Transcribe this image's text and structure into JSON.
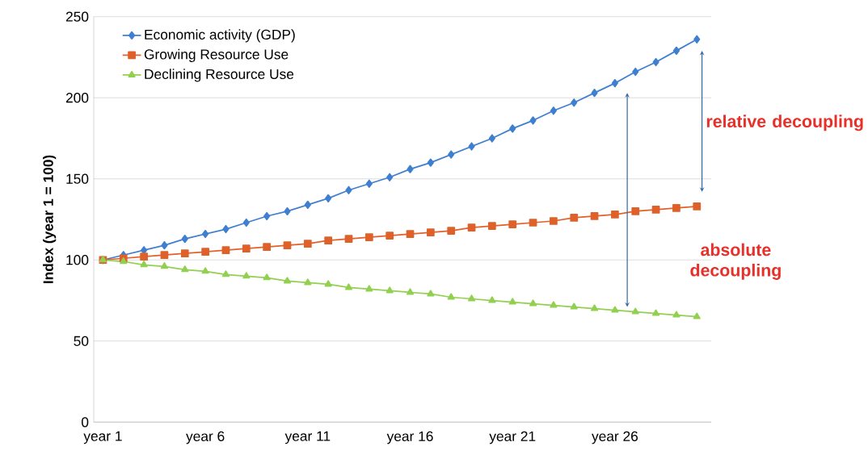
{
  "chart_data": {
    "type": "line",
    "ylabel": "Index (year 1 = 100)",
    "categories": [
      "year 1",
      null,
      null,
      null,
      null,
      "year 6",
      null,
      null,
      null,
      null,
      "year 11",
      null,
      null,
      null,
      null,
      "year 16",
      null,
      null,
      null,
      null,
      "year 21",
      null,
      null,
      null,
      null,
      "year 26",
      null,
      null,
      null,
      null
    ],
    "series": [
      {
        "name": "Economic activity (GDP)",
        "color": "#3f7fd0",
        "marker": "diamond",
        "values": [
          100,
          103,
          106,
          109,
          113,
          116,
          119,
          123,
          127,
          130,
          134,
          138,
          143,
          147,
          151,
          156,
          160,
          165,
          170,
          175,
          181,
          186,
          192,
          197,
          203,
          209,
          216,
          222,
          229,
          236
        ]
      },
      {
        "name": "Growing Resource Use",
        "color": "#e0602a",
        "marker": "square",
        "values": [
          100,
          101,
          102,
          103,
          104,
          105,
          106,
          107,
          108,
          109,
          110,
          112,
          113,
          114,
          115,
          116,
          117,
          118,
          120,
          121,
          122,
          123,
          124,
          126,
          127,
          128,
          130,
          131,
          132,
          133
        ]
      },
      {
        "name": "Declining Resource Use",
        "color": "#92d050",
        "marker": "triangle",
        "values": [
          100,
          99,
          97,
          96,
          94,
          93,
          91,
          90,
          89,
          87,
          86,
          85,
          83,
          82,
          81,
          80,
          79,
          77,
          76,
          75,
          74,
          73,
          72,
          71,
          70,
          69,
          68,
          67,
          66,
          65
        ]
      }
    ],
    "annotations": [
      "relative decoupling",
      "absolute decoupling"
    ],
    "ylim": [
      0,
      250
    ],
    "yticks": [
      0,
      50,
      100,
      150,
      200,
      250
    ],
    "grid": "y",
    "legend": "top left"
  }
}
